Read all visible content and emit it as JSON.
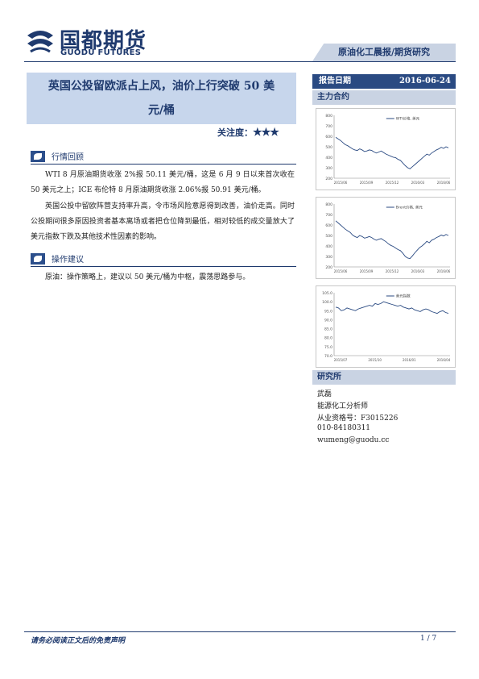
{
  "logo": {
    "name_cn": "国都期货",
    "name_en": "GUODU FUTURES"
  },
  "header": {
    "banner": "原油化工晨报/期货研究"
  },
  "title": {
    "line1": "英国公投留欧派占上风，油价上行突破 50 美",
    "line2": "元/桶",
    "attention_label": "关注度：",
    "attention_stars": "★★★",
    "attention_level": 3
  },
  "sections": [
    {
      "heading": "行情回顾",
      "paragraphs": [
        "WTI 8 月原油期货收涨 2%报 50.11 美元/桶，这是 6 月 9 日以来首次收在 50 美元之上；ICE 布伦特 8 月原油期货收涨 2.06%报 50.91 美元/桶。",
        "英国公投中留欧阵营支持率升高，令市场风险意愿得到改善，油价走高。同时公投期间很多原因投资者基本离场或者把仓位降到最低，相对较低的成交量放大了美元指数下跌及其他技术性因素的影响。"
      ]
    },
    {
      "heading": "操作建议",
      "paragraphs": [
        "原油：操作策略上，建议以 50 美元/桶为中枢，震荡思路参与。"
      ]
    }
  ],
  "right": {
    "report_date_label": "报告日期",
    "report_date": "2016-06-24",
    "main_contract_label": "主力合约",
    "institute_label": "研究所",
    "analyst": {
      "name": "武磊",
      "title": "能源化工分析师",
      "license": "从业资格号：F3015226",
      "phone": "010-84180311",
      "email": "wumeng@guodu.cc"
    }
  },
  "charts": [
    {
      "type": "line",
      "legend": "WTI价格, 美元",
      "color": "#2a4a82",
      "ylim": [
        200,
        800
      ],
      "yticks": [
        "800",
        "700",
        "600",
        "500",
        "400",
        "300",
        "200"
      ],
      "xticks": [
        "2015/06",
        "2015/09",
        "2015/12",
        "2016/03",
        "2016/06"
      ],
      "values": [
        590,
        575,
        560,
        540,
        520,
        510,
        495,
        480,
        470,
        465,
        480,
        470,
        455,
        460,
        470,
        465,
        450,
        440,
        450,
        460,
        445,
        430,
        420,
        410,
        400,
        395,
        380,
        370,
        345,
        320,
        300,
        290,
        310,
        330,
        350,
        370,
        390,
        410,
        430,
        420,
        440,
        455,
        470,
        480,
        495,
        485,
        500,
        490
      ]
    },
    {
      "type": "line",
      "legend": "Brent价格, 美元",
      "color": "#2a4a82",
      "ylim": [
        200,
        800
      ],
      "yticks": [
        "800",
        "700",
        "600",
        "500",
        "400",
        "300",
        "200"
      ],
      "xticks": [
        "2015/06",
        "2015/09",
        "2015/12",
        "2016/03",
        "2016/06"
      ],
      "values": [
        640,
        620,
        600,
        580,
        560,
        545,
        530,
        505,
        490,
        480,
        500,
        490,
        475,
        480,
        490,
        480,
        465,
        455,
        465,
        470,
        455,
        440,
        420,
        405,
        395,
        380,
        365,
        355,
        330,
        300,
        285,
        280,
        305,
        335,
        360,
        385,
        400,
        420,
        445,
        430,
        455,
        465,
        480,
        490,
        505,
        495,
        510,
        500
      ]
    },
    {
      "type": "line",
      "legend": "美元指数",
      "color": "#2a4a82",
      "ylim": [
        70,
        105
      ],
      "yticks": [
        "105.0",
        "100.0",
        "95.0",
        "90.0",
        "85.0",
        "80.0",
        "75.0",
        "70.0"
      ],
      "xticks": [
        "2015/07",
        "2015/10",
        "2016/01",
        "2016/04"
      ],
      "values": [
        97,
        96.5,
        95,
        95.5,
        96.5,
        96,
        95.5,
        95,
        96,
        96.5,
        97,
        97.5,
        98,
        97.5,
        99,
        98.5,
        99,
        100,
        99.5,
        99,
        98.5,
        98,
        97.5,
        98,
        97,
        96.5,
        96,
        96.5,
        95.5,
        95,
        94.5,
        95.5,
        96,
        95.5,
        94.5,
        94,
        93.5,
        94.5,
        95,
        94,
        93.5
      ]
    }
  ],
  "footer": {
    "disclaimer": "请务必阅读正文后的免责声明",
    "page": "1 / 7"
  }
}
